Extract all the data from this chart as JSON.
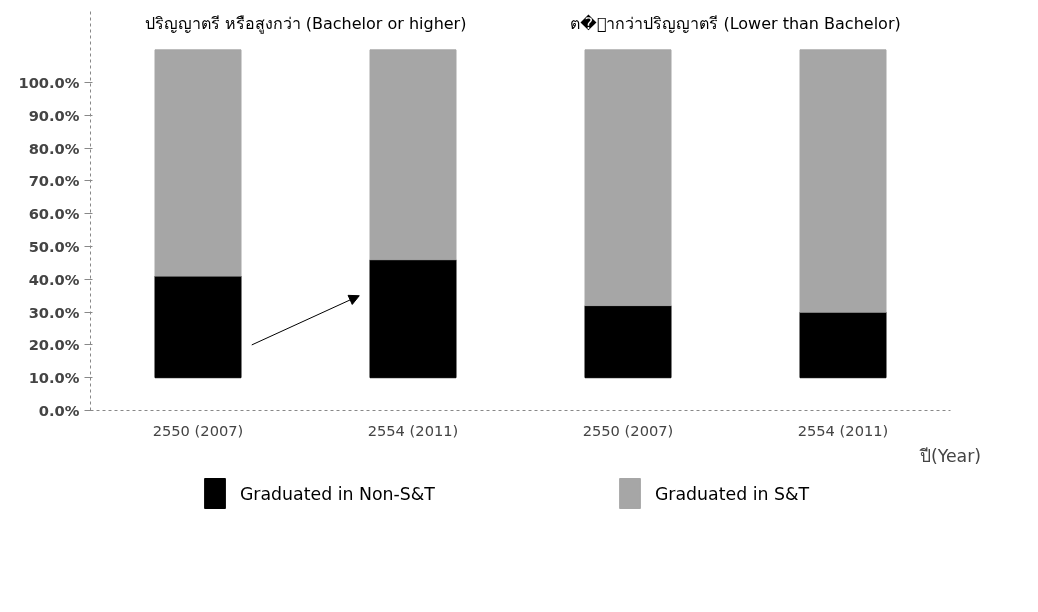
{
  "chart_data": {
    "type": "bar",
    "categories": [
      "2550 (2007)",
      "2554 (2011)",
      "2550 (2007)",
      "2554 (2011)"
    ],
    "series": [
      {
        "name": "Graduated in Non-S&T",
        "color": "#000000",
        "base": [
          10,
          10,
          10,
          10
        ],
        "values": [
          31,
          36,
          22,
          20
        ]
      },
      {
        "name": "Graduated in S&T",
        "color": "#a6a6a6",
        "base": [
          41,
          46,
          32,
          30
        ],
        "values": [
          69,
          64,
          78,
          80
        ]
      }
    ],
    "xlabel": "ปี(Year)",
    "annotations": [
      "ปริญญาตรี หรือสูงกว่า (Bachelor or higher)",
      "ต�่ากว่าปริญญาตรี (Lower than Bachelor)"
    ],
    "ylim": [
      0,
      122
    ],
    "yticks": [
      {
        "value": 0,
        "label": "0.0%"
      },
      {
        "value": 10,
        "label": "10.0%"
      },
      {
        "value": 20,
        "label": "20.0%"
      },
      {
        "value": 30,
        "label": "30.0%"
      },
      {
        "value": 40,
        "label": "40.0%"
      },
      {
        "value": 50,
        "label": "50.0%"
      },
      {
        "value": 60,
        "label": "60.0%"
      },
      {
        "value": 70,
        "label": "70.0%"
      },
      {
        "value": 80,
        "label": "80.0%"
      },
      {
        "value": 90,
        "label": "90.0%"
      },
      {
        "value": 100,
        "label": "100.0%"
      }
    ],
    "grid": false,
    "legend": "bottom"
  }
}
